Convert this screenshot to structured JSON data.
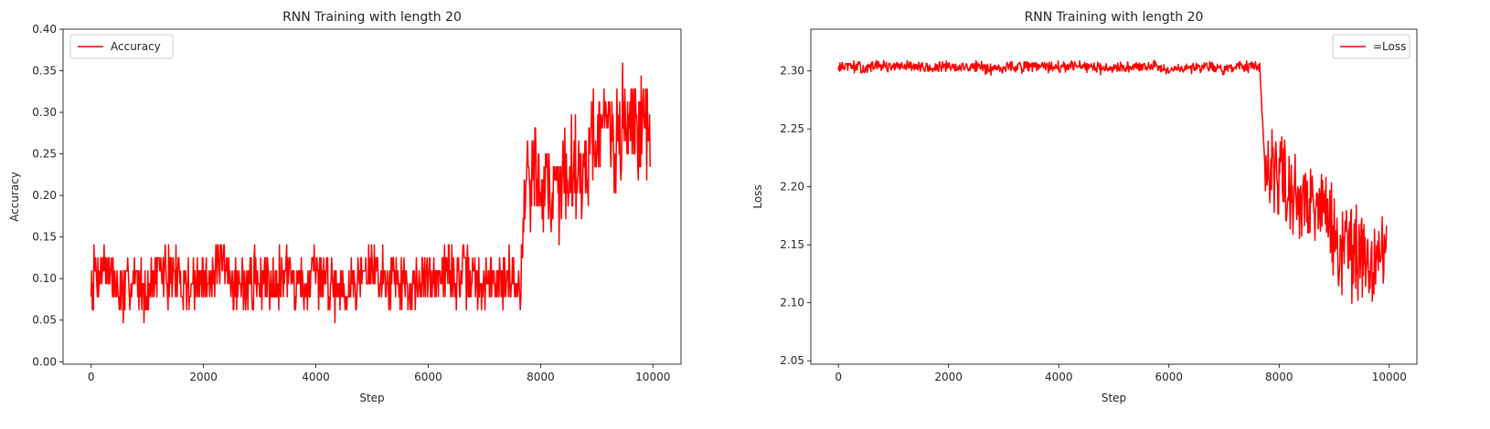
{
  "chart_data": [
    {
      "type": "line",
      "title": "RNN Training with length 20",
      "xlabel": "Step",
      "ylabel": "Accuracy",
      "xlim": [
        -500,
        10500
      ],
      "ylim": [
        -0.003,
        0.4
      ],
      "xticks": [
        0,
        2000,
        4000,
        6000,
        8000,
        10000
      ],
      "xtick_labels": [
        "0",
        "2000",
        "4000",
        "6000",
        "8000",
        "10000"
      ],
      "yticks": [
        0.0,
        0.05,
        0.1,
        0.15,
        0.2,
        0.25,
        0.3,
        0.35,
        0.4
      ],
      "ytick_labels": [
        "0.00",
        "0.05",
        "0.10",
        "0.15",
        "0.20",
        "0.25",
        "0.30",
        "0.35",
        "0.40"
      ],
      "grid": false,
      "legend_position": "top-left",
      "series": [
        {
          "name": "Accuracy",
          "color": "#ff0000",
          "x": [
            0,
            250,
            500,
            750,
            1000,
            1250,
            1500,
            1750,
            2000,
            2250,
            2500,
            2750,
            3000,
            3250,
            3500,
            3750,
            4000,
            4250,
            4500,
            4750,
            5000,
            5250,
            5500,
            5750,
            6000,
            6250,
            6500,
            6750,
            7000,
            7250,
            7500,
            7650,
            7750,
            8000,
            8250,
            8500,
            8750,
            9000,
            9250,
            9500,
            9750,
            9950
          ],
          "y": [
            0.1,
            0.12,
            0.08,
            0.1,
            0.09,
            0.11,
            0.1,
            0.09,
            0.1,
            0.11,
            0.1,
            0.09,
            0.1,
            0.1,
            0.11,
            0.09,
            0.1,
            0.1,
            0.09,
            0.1,
            0.11,
            0.1,
            0.1,
            0.09,
            0.1,
            0.11,
            0.1,
            0.1,
            0.09,
            0.1,
            0.1,
            0.1,
            0.23,
            0.22,
            0.2,
            0.24,
            0.23,
            0.28,
            0.27,
            0.28,
            0.29,
            0.26
          ]
        }
      ]
    },
    {
      "type": "line",
      "title": "RNN Training with length 20",
      "xlabel": "Step",
      "ylabel": "Loss",
      "xlim": [
        -500,
        10500
      ],
      "ylim": [
        2.047,
        2.336
      ],
      "xticks": [
        0,
        2000,
        4000,
        6000,
        8000,
        10000
      ],
      "xtick_labels": [
        "0",
        "2000",
        "4000",
        "6000",
        "8000",
        "10000"
      ],
      "yticks": [
        2.05,
        2.1,
        2.15,
        2.2,
        2.25,
        2.3
      ],
      "ytick_labels": [
        "2.05",
        "2.10",
        "2.15",
        "2.20",
        "2.25",
        "2.30"
      ],
      "grid": false,
      "legend_position": "top-right",
      "series": [
        {
          "name": "=Loss",
          "color": "#ff0000",
          "x": [
            0,
            250,
            500,
            750,
            1000,
            1250,
            1500,
            1750,
            2000,
            2250,
            2500,
            2750,
            3000,
            3250,
            3500,
            3750,
            4000,
            4250,
            4500,
            4750,
            5000,
            5250,
            5500,
            5750,
            6000,
            6250,
            6500,
            6750,
            7000,
            7250,
            7500,
            7650,
            7750,
            8000,
            8250,
            8500,
            8750,
            9000,
            9250,
            9500,
            9750,
            9950
          ],
          "y": [
            2.303,
            2.304,
            2.302,
            2.305,
            2.303,
            2.304,
            2.303,
            2.302,
            2.304,
            2.303,
            2.304,
            2.302,
            2.303,
            2.304,
            2.303,
            2.304,
            2.303,
            2.304,
            2.303,
            2.302,
            2.304,
            2.303,
            2.303,
            2.304,
            2.302,
            2.303,
            2.303,
            2.304,
            2.302,
            2.303,
            2.303,
            2.302,
            2.21,
            2.205,
            2.2,
            2.19,
            2.19,
            2.15,
            2.14,
            2.14,
            2.13,
            2.14
          ]
        }
      ]
    }
  ]
}
